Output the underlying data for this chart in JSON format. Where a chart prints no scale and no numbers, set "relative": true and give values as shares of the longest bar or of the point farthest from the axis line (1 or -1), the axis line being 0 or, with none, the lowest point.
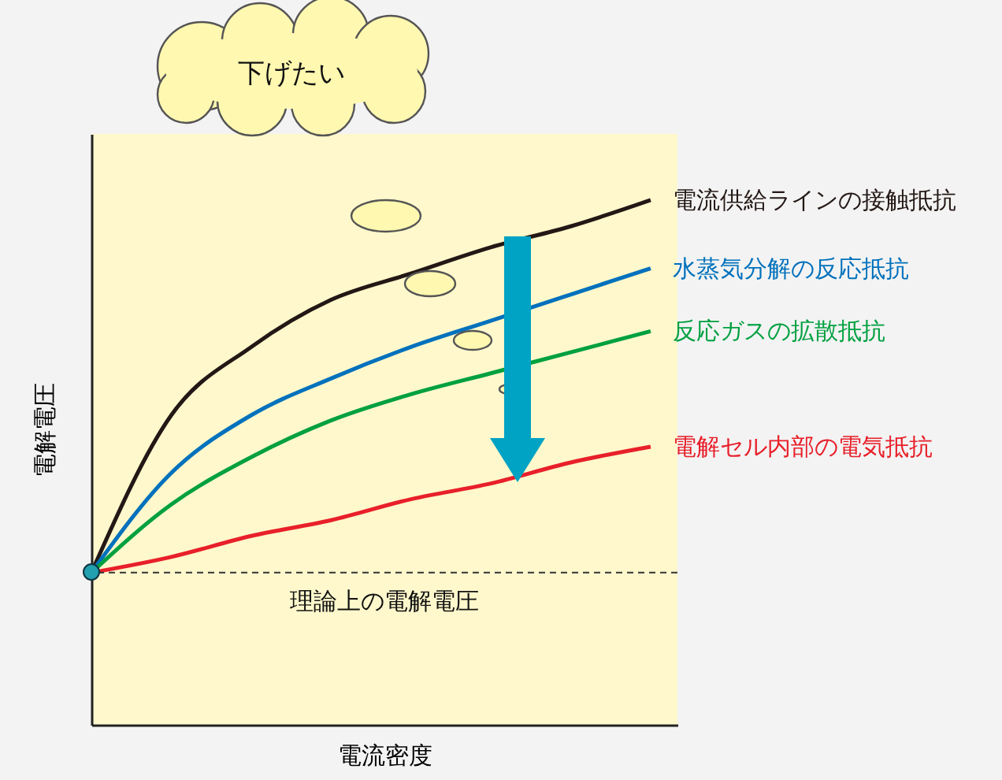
{
  "chart_data": {
    "type": "line",
    "relative": true,
    "xlabel": "電流密度",
    "ylabel": "電解電圧",
    "legend": false,
    "marker": "none",
    "categories": [
      null,
      null,
      null,
      null,
      null,
      null,
      null,
      null
    ],
    "series": [
      {
        "name": "電流供給ラインの接触抵抗",
        "color": "#231815",
        "values": [
          0.29,
          0.59,
          0.72,
          0.81,
          0.86,
          0.91,
          0.95,
          1
        ]
      },
      {
        "name": "水蒸気分解の反応抵抗",
        "color": "#0071bc",
        "values": [
          0.29,
          0.48,
          0.59,
          0.66,
          0.72,
          0.77,
          0.82,
          0.87
        ]
      },
      {
        "name": "反応ガスの拡散抵抗",
        "color": "#00a040",
        "values": [
          0.29,
          0.42,
          0.51,
          0.58,
          0.63,
          0.67,
          0.71,
          0.75
        ]
      },
      {
        "name": "電解セル内部の電気抵抗",
        "color": "#e8202a",
        "values": [
          0.29,
          0.32,
          0.36,
          0.39,
          0.43,
          0.46,
          0.5,
          0.53
        ]
      }
    ],
    "ref_lines": [
      {
        "axis": "y",
        "value": 0.29,
        "label": "理論上の電解電圧",
        "line_style": "dashed"
      }
    ],
    "annotations": [
      "下げたい"
    ]
  }
}
